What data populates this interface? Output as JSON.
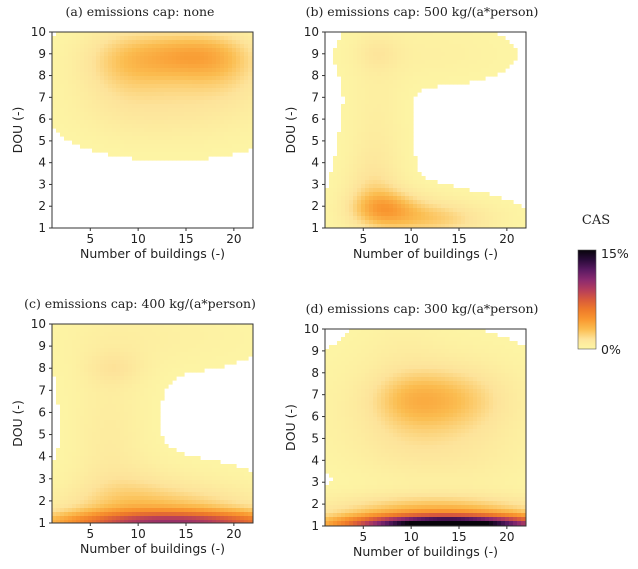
{
  "chart_data": {
    "type": "heatmap",
    "colorbar": {
      "title": "CAS",
      "min_label": "0%",
      "max_label": "15%",
      "range": [
        0,
        15
      ],
      "stops": [
        "#fdf6a5",
        "#fde39a",
        "#fbbd50",
        "#f99830",
        "#ee7a2a",
        "#d85a3c",
        "#b43d5c",
        "#8a2a6f",
        "#5a1a62",
        "#2a0b3a",
        "#07040a"
      ]
    },
    "panels": [
      {
        "title": "(a) emissions cap: none",
        "xlabel": "Number of buildings (-)",
        "ylabel": "DOU (-)",
        "xlim": [
          1,
          22
        ],
        "ylim": [
          1,
          10
        ],
        "xticks": [
          5,
          10,
          15,
          20
        ],
        "yticks": [
          1,
          2,
          3,
          4,
          5,
          6,
          7,
          8,
          9,
          10
        ],
        "hotspots": [
          {
            "x": 16,
            "y": 9.0,
            "sx": 3.5,
            "sy": 0.7,
            "amp": 2.0
          },
          {
            "x": 11,
            "y": 8.8,
            "sx": 4.0,
            "sy": 0.9,
            "amp": 1.8
          },
          {
            "x": 19,
            "y": 8.6,
            "sx": 3.0,
            "sy": 1.0,
            "amp": 1.3
          },
          {
            "x": 8,
            "y": 8.4,
            "sx": 3.0,
            "sy": 1.4,
            "amp": 0.9
          },
          {
            "x": 13,
            "y": 7.4,
            "sx": 6.0,
            "sy": 1.5,
            "amp": 0.8
          },
          {
            "x": 18,
            "y": 7.2,
            "sx": 5.0,
            "sy": 1.3,
            "amp": 0.6
          },
          {
            "x": 10,
            "y": 6.2,
            "sx": 5.0,
            "sy": 0.9,
            "amp": 0.35
          }
        ]
      },
      {
        "title": "(b) emissions cap: 500 kg/(a*person)",
        "xlabel": "Number of buildings (-)",
        "ylabel": "DOU (-)",
        "xlim": [
          1,
          22
        ],
        "ylim": [
          1,
          10
        ],
        "xticks": [
          5,
          10,
          15,
          20
        ],
        "yticks": [
          1,
          2,
          3,
          4,
          5,
          6,
          7,
          8,
          9,
          10
        ],
        "hotspots": [
          {
            "x": 7,
            "y": 1.9,
            "sx": 2.2,
            "sy": 0.55,
            "amp": 2.4
          },
          {
            "x": 9,
            "y": 1.6,
            "sx": 3.5,
            "sy": 0.7,
            "amp": 1.8
          },
          {
            "x": 13,
            "y": 1.4,
            "sx": 3.0,
            "sy": 0.5,
            "amp": 1.3
          },
          {
            "x": 6,
            "y": 2.8,
            "sx": 2.0,
            "sy": 0.8,
            "amp": 0.9
          },
          {
            "x": 17,
            "y": 1.4,
            "sx": 3.0,
            "sy": 0.6,
            "amp": 0.5
          },
          {
            "x": 6.5,
            "y": 9.0,
            "sx": 1.5,
            "sy": 0.5,
            "amp": 0.7
          },
          {
            "x": 6.5,
            "y": 6.2,
            "sx": 2.0,
            "sy": 3.2,
            "amp": 0.55
          },
          {
            "x": 12,
            "y": 9.0,
            "sx": 5.5,
            "sy": 0.9,
            "amp": 0.45
          },
          {
            "x": 6,
            "y": 4.0,
            "sx": 2.0,
            "sy": 1.2,
            "amp": 0.45
          }
        ]
      },
      {
        "title": "(c) emissions cap: 400 kg/(a*person)",
        "xlabel": "Number of buildings (-)",
        "ylabel": "DOU (-)",
        "xlim": [
          1,
          22
        ],
        "ylim": [
          1,
          10
        ],
        "xticks": [
          5,
          10,
          15,
          20
        ],
        "yticks": [
          1,
          2,
          3,
          4,
          5,
          6,
          7,
          8,
          9,
          10
        ],
        "hotspots": [
          {
            "x": 14,
            "y": 1.0,
            "sx": 9.0,
            "sy": 0.35,
            "amp": 8.0
          },
          {
            "x": 13,
            "y": 1.5,
            "sx": 8.0,
            "sy": 0.7,
            "amp": 2.0
          },
          {
            "x": 8,
            "y": 2.4,
            "sx": 3.5,
            "sy": 1.0,
            "amp": 1.1
          },
          {
            "x": 14,
            "y": 2.2,
            "sx": 5.0,
            "sy": 0.9,
            "amp": 0.7
          },
          {
            "x": 7.5,
            "y": 8.0,
            "sx": 2.0,
            "sy": 0.5,
            "amp": 0.9
          },
          {
            "x": 7,
            "y": 7.2,
            "sx": 3.0,
            "sy": 2.0,
            "amp": 0.55
          },
          {
            "x": 12,
            "y": 9.4,
            "sx": 7.0,
            "sy": 1.0,
            "amp": 0.45
          },
          {
            "x": 7,
            "y": 4.6,
            "sx": 2.5,
            "sy": 1.2,
            "amp": 0.5
          }
        ]
      },
      {
        "title": "(d) emissions cap: 300 kg/(a*person)",
        "xlabel": "Number of buildings (-)",
        "ylabel": "DOU (-)",
        "xlim": [
          1,
          22
        ],
        "ylim": [
          1,
          10
        ],
        "xticks": [
          5,
          10,
          15,
          20
        ],
        "yticks": [
          1,
          2,
          3,
          4,
          5,
          6,
          7,
          8,
          9,
          10
        ],
        "hotspots": [
          {
            "x": 14,
            "y": 1.0,
            "sx": 7.0,
            "sy": 0.3,
            "amp": 16.0
          },
          {
            "x": 13,
            "y": 1.4,
            "sx": 8.0,
            "sy": 0.55,
            "amp": 3.5
          },
          {
            "x": 12,
            "y": 2.1,
            "sx": 7.0,
            "sy": 0.4,
            "amp": 0.7
          },
          {
            "x": 10,
            "y": 6.8,
            "sx": 3.0,
            "sy": 0.9,
            "amp": 1.9
          },
          {
            "x": 15,
            "y": 6.8,
            "sx": 3.5,
            "sy": 1.0,
            "amp": 1.5
          },
          {
            "x": 12,
            "y": 6.3,
            "sx": 7.0,
            "sy": 1.8,
            "amp": 1.1
          },
          {
            "x": 10,
            "y": 4.6,
            "sx": 4.0,
            "sy": 1.0,
            "amp": 0.6
          },
          {
            "x": 17,
            "y": 4.0,
            "sx": 4.0,
            "sy": 1.0,
            "amp": 0.35
          },
          {
            "x": 9,
            "y": 9.3,
            "sx": 3.0,
            "sy": 1.0,
            "amp": 0.35
          }
        ]
      }
    ]
  }
}
